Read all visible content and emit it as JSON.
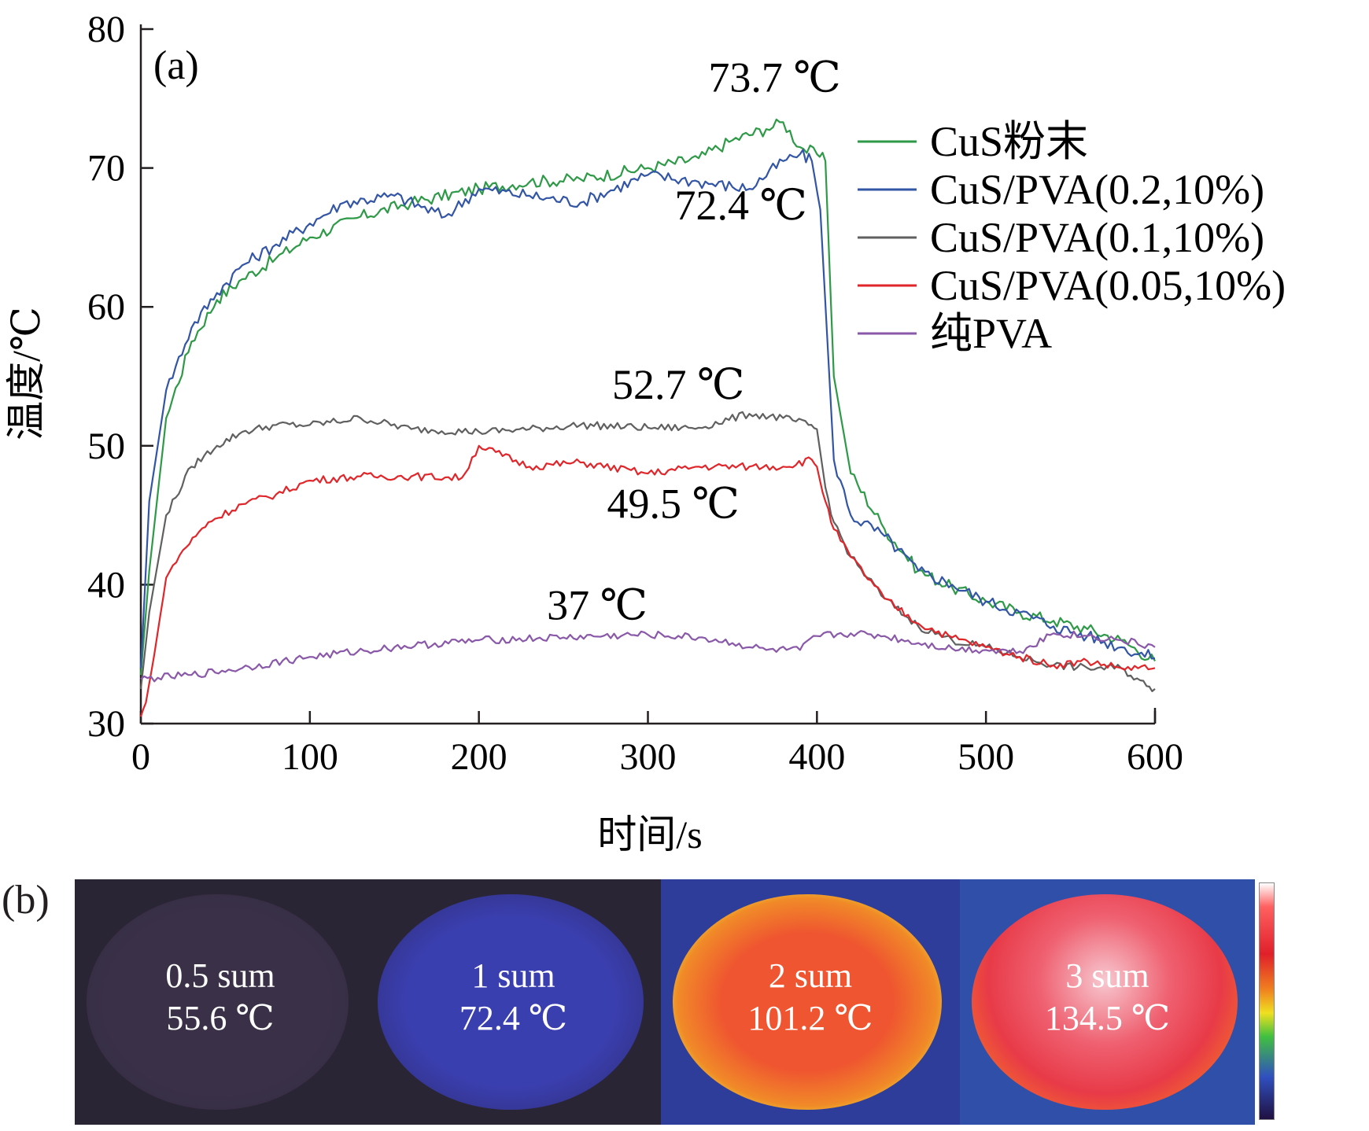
{
  "chart_data": {
    "type": "line",
    "panel_label": "(a)",
    "xlabel": "时间/s",
    "ylabel": "温度/℃",
    "xlim": [
      0,
      600
    ],
    "ylim": [
      30,
      80
    ],
    "xticks": [
      "0",
      "100",
      "200",
      "300",
      "400",
      "500",
      "600"
    ],
    "yticks": [
      "30",
      "40",
      "50",
      "60",
      "70",
      "80"
    ],
    "legend_position": "top-right",
    "series": [
      {
        "name": "CuS粉末",
        "color": "#2e9a47",
        "x": [
          0,
          5,
          15,
          30,
          45,
          60,
          80,
          100,
          130,
          160,
          200,
          230,
          260,
          300,
          330,
          350,
          370,
          380,
          390,
          400,
          405,
          410,
          420,
          440,
          460,
          480,
          500,
          520,
          540,
          560,
          580,
          600
        ],
        "y": [
          33.5,
          41,
          52,
          57.5,
          60.5,
          62,
          63.5,
          65,
          66.5,
          67.5,
          68.5,
          69,
          69.2,
          70,
          70.7,
          72,
          72.8,
          73.3,
          71.5,
          71,
          70.5,
          55,
          48,
          44,
          41,
          39.8,
          38.8,
          38,
          37.4,
          36.8,
          36,
          34.5
        ]
      },
      {
        "name": "CuS/PVA(0.2,10%)",
        "color": "#3355a5",
        "x": [
          0,
          5,
          15,
          30,
          45,
          60,
          80,
          100,
          120,
          150,
          180,
          200,
          230,
          260,
          300,
          330,
          360,
          380,
          390,
          397,
          402,
          410,
          420,
          440,
          460,
          480,
          500,
          520,
          540,
          560,
          580,
          600
        ],
        "y": [
          34,
          46,
          54,
          58.5,
          61,
          63,
          64.5,
          66,
          67.5,
          68,
          66.5,
          68.5,
          68,
          67.5,
          69.5,
          69,
          68.5,
          70.5,
          71,
          70.5,
          67,
          49,
          45,
          43.5,
          41,
          40,
          38.8,
          38,
          37,
          36.3,
          35.5,
          34.7
        ]
      },
      {
        "name": "CuS/PVA(0.1,10%)",
        "color": "#606060",
        "x": [
          0,
          5,
          15,
          30,
          45,
          60,
          80,
          100,
          130,
          160,
          200,
          230,
          260,
          300,
          330,
          360,
          380,
          395,
          400,
          405,
          410,
          420,
          440,
          460,
          480,
          500,
          520,
          540,
          560,
          580,
          595,
          600
        ],
        "y": [
          32.5,
          38,
          45,
          48.5,
          50,
          51,
          51.5,
          51.5,
          52,
          51.2,
          51,
          51.2,
          51.5,
          51.3,
          51.3,
          52.3,
          52,
          51.5,
          51.2,
          47,
          44.5,
          42,
          39,
          37,
          36,
          35.5,
          34.8,
          34.2,
          34,
          34,
          32.7,
          32.5
        ]
      },
      {
        "name": "CuS/PVA(0.05,10%)",
        "color": "#e0262a",
        "x": [
          0,
          3,
          8,
          15,
          25,
          40,
          60,
          80,
          100,
          130,
          160,
          190,
          200,
          230,
          260,
          300,
          330,
          360,
          380,
          397,
          400,
          405,
          410,
          420,
          440,
          460,
          480,
          500,
          520,
          540,
          560,
          580,
          600
        ],
        "y": [
          30.5,
          31.5,
          35,
          40.5,
          42.5,
          44.5,
          45.8,
          46.5,
          47.5,
          47.8,
          47.8,
          47.7,
          50,
          48.5,
          48.8,
          48,
          48.5,
          48.5,
          48.5,
          49,
          48.5,
          46,
          44,
          42,
          39,
          37.2,
          36.2,
          35.5,
          34.8,
          34.2,
          34.5,
          34,
          34
        ]
      },
      {
        "name": "纯PVA",
        "color": "#8a58a8",
        "x": [
          0,
          10,
          30,
          60,
          100,
          150,
          200,
          250,
          300,
          330,
          350,
          370,
          390,
          400,
          420,
          440,
          460,
          480,
          500,
          520,
          540,
          560,
          580,
          600
        ],
        "y": [
          33.2,
          33.3,
          33.5,
          34,
          34.8,
          35.5,
          36,
          36.2,
          36.4,
          36.2,
          35.8,
          35.3,
          35.3,
          36.3,
          36.5,
          36.3,
          35.8,
          35.4,
          35.3,
          35.2,
          36.5,
          36.3,
          36,
          35.5
        ]
      }
    ],
    "annotations": [
      {
        "text": "73.7 ℃",
        "x": 375,
        "y": 75.5
      },
      {
        "text": "72.4 ℃",
        "x": 355,
        "y": 66.3
      },
      {
        "text": "52.7 ℃",
        "x": 318,
        "y": 53.4
      },
      {
        "text": "49.5 ℃",
        "x": 315,
        "y": 44.8
      },
      {
        "text": "37 ℃",
        "x": 270,
        "y": 37.5
      }
    ]
  },
  "thermal": {
    "panel_label": "(b)",
    "tiles": [
      {
        "label": "0.5 sum",
        "temp": "55.6 ℃",
        "blob": "#3a3148",
        "bg": "#2a2535"
      },
      {
        "label": "1 sum",
        "temp": "72.4 ℃",
        "blob": "#3a3aa0",
        "bg": "#2a2535"
      },
      {
        "label": "2 sum",
        "temp": "101.2 ℃",
        "blob": "#ee5a2e",
        "bg": "#2f3d9a"
      },
      {
        "label": "3 sum",
        "temp": "134.5 ℃",
        "blob": "#e8404e",
        "bg": "#2f4fa8"
      }
    ]
  }
}
